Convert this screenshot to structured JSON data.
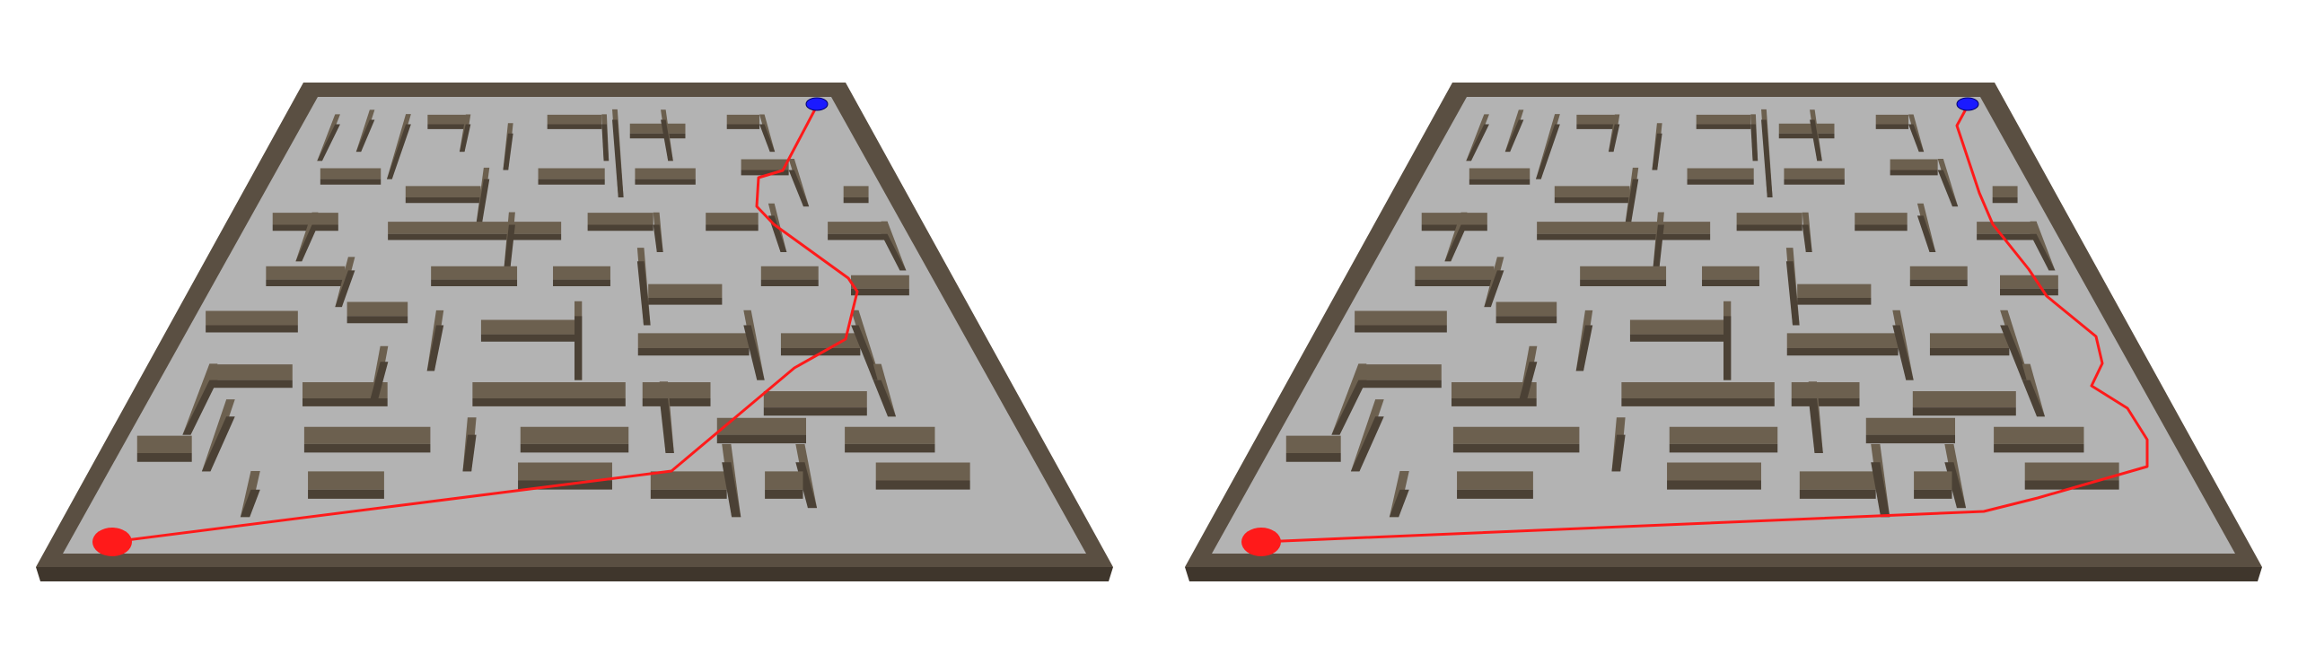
{
  "scene": {
    "kind": "3d-maze-comparison",
    "colors": {
      "floor": "#b3b3b3",
      "wall": "#6c604f",
      "path": "#ff1a1a",
      "start_marker": "#ff1a1a",
      "goal_marker": "#1a1aff",
      "background": "#ffffff"
    }
  },
  "panels": [
    {
      "id": "left",
      "markers": {
        "start": "red-ellipse",
        "goal": "blue-ellipse"
      }
    },
    {
      "id": "right",
      "markers": {
        "start": "red-ellipse",
        "goal": "blue-ellipse"
      }
    }
  ]
}
